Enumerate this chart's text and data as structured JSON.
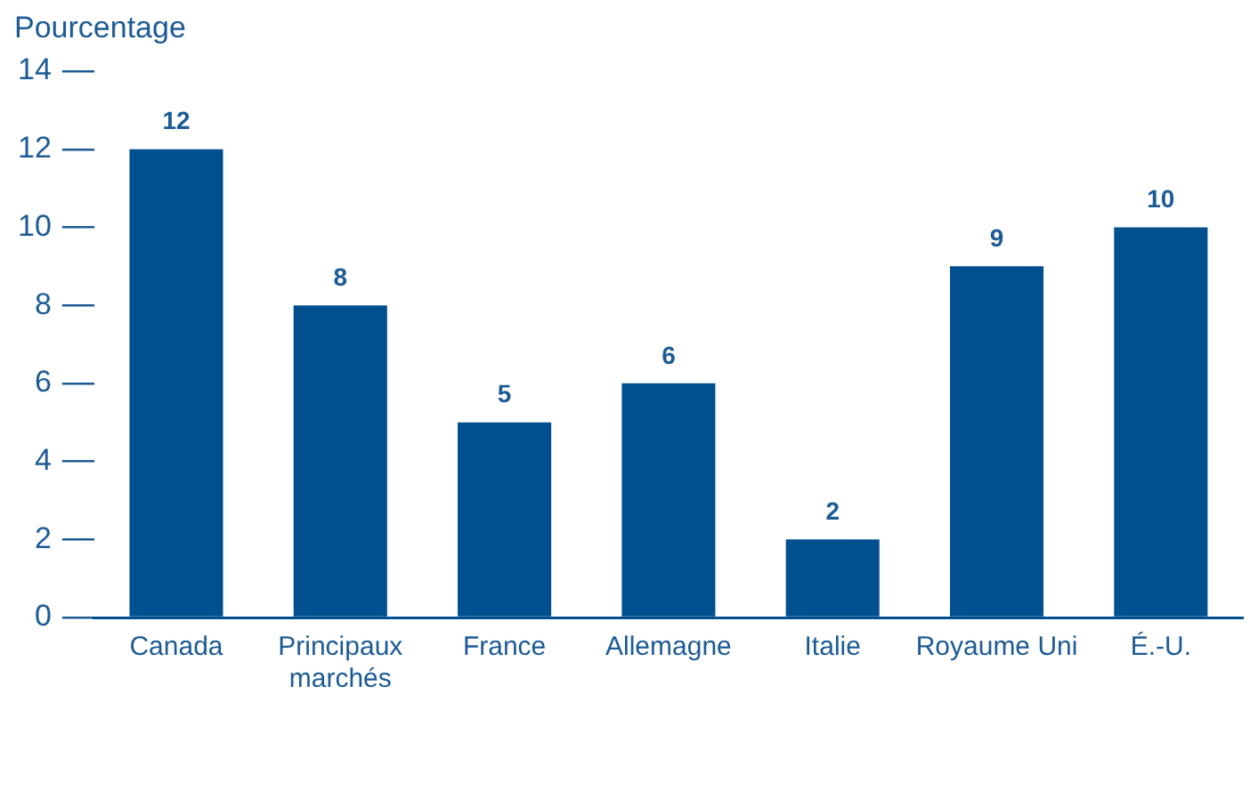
{
  "chart_data": {
    "type": "bar",
    "ylabel": "Pourcentage",
    "categories": [
      "Canada",
      "Principaux marchés",
      "France",
      "Allemagne",
      "Italie",
      "Royaume Uni",
      "É.-U."
    ],
    "values": [
      12,
      8,
      5,
      6,
      2,
      9,
      10
    ],
    "color": "#00508f",
    "ylim": [
      0,
      14
    ],
    "yticks": [
      0,
      2,
      4,
      6,
      8,
      10,
      12,
      14
    ],
    "grid": false,
    "legend": false,
    "data_labels": true
  }
}
